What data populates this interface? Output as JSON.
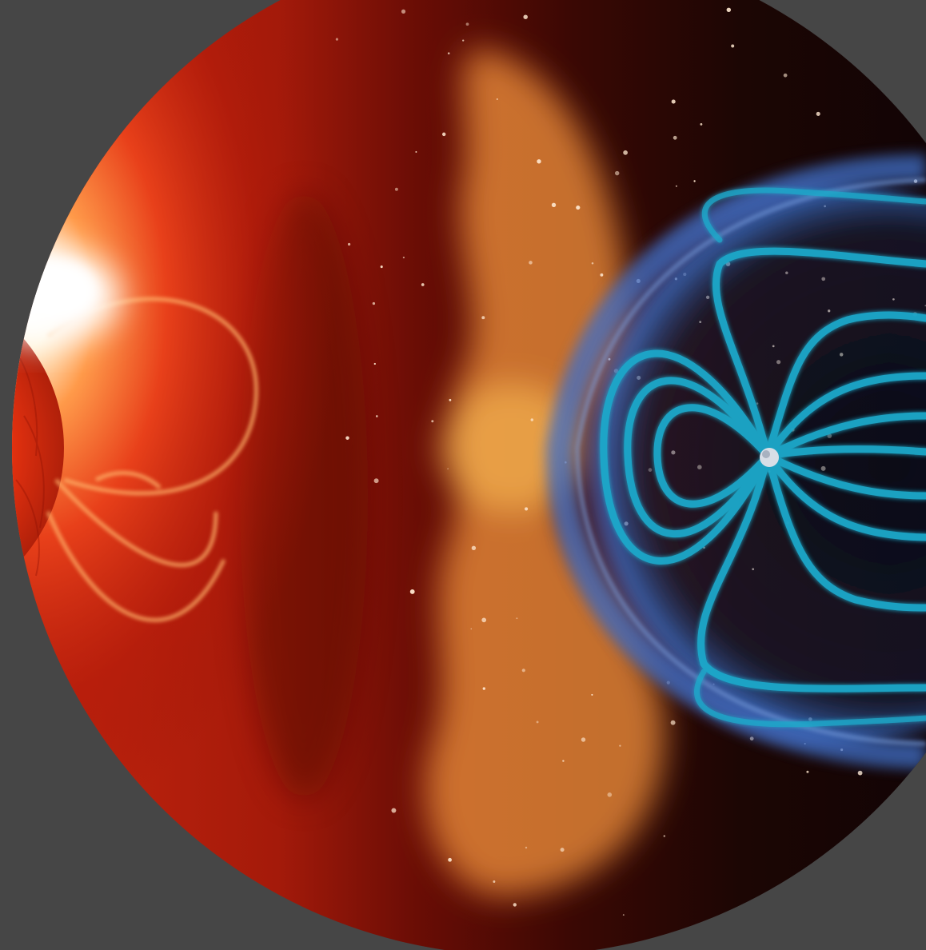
{
  "image": {
    "subject": "space-weather-illustration",
    "background_color": "#464646",
    "colors": {
      "sun_core": "#fff6e0",
      "sun_red": "#d9230f",
      "plasma_orange": "#e8802a",
      "space_dark": "#1a0604",
      "magnetosphere_blue": "#2f6fc7",
      "field_lines_cyan": "#1fa7c8"
    },
    "star_count": 110
  }
}
